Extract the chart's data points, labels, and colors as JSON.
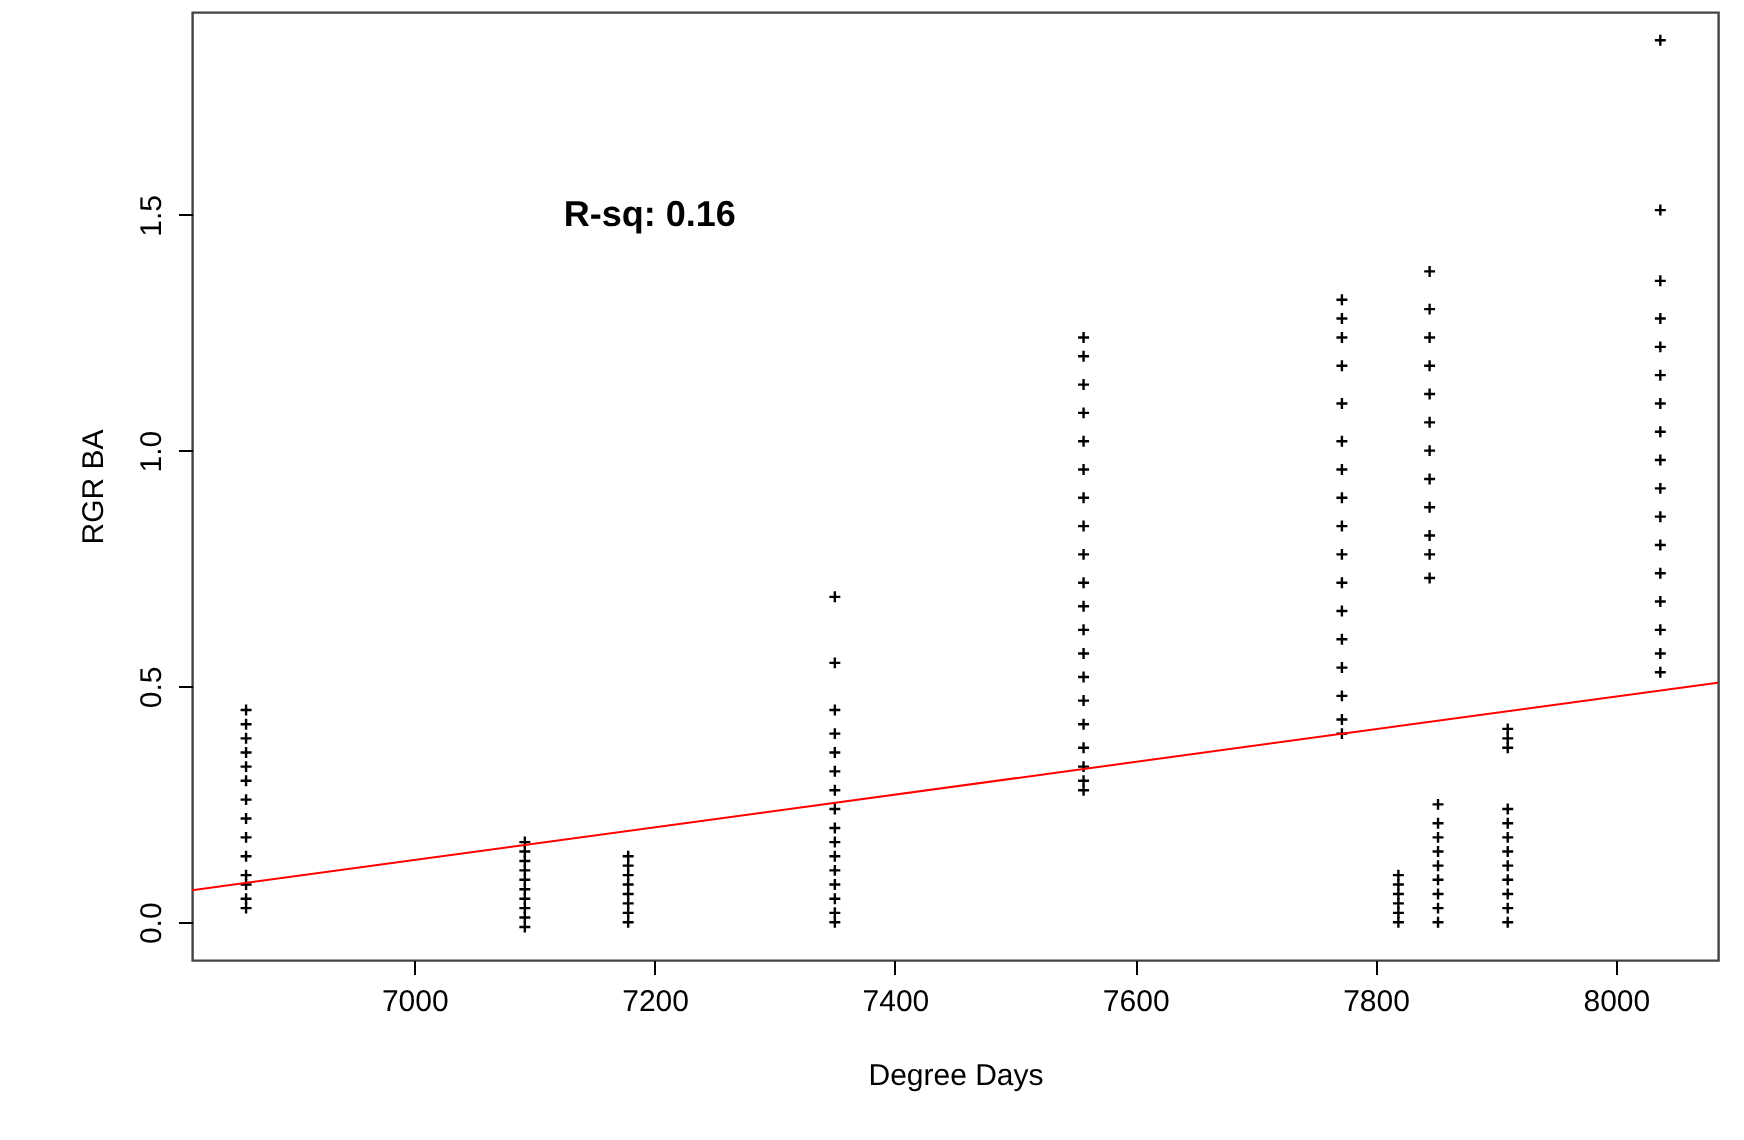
{
  "chart_data": {
    "type": "scatter",
    "xlabel": "Degree Days",
    "ylabel": "RGR BA",
    "annotations": [
      "R-sq: 0.16"
    ],
    "xlim": [
      6815,
      8085
    ],
    "xticks": [
      {
        "value": 7000,
        "label": "7000"
      },
      {
        "value": 7200,
        "label": "7200"
      },
      {
        "value": 7400,
        "label": "7400"
      },
      {
        "value": 7600,
        "label": "7600"
      },
      {
        "value": 7800,
        "label": "7800"
      },
      {
        "value": 8000,
        "label": "8000"
      }
    ],
    "ylim": [
      -0.08,
      1.93
    ],
    "yticks": [
      {
        "value": 0,
        "label": "0.0"
      },
      {
        "value": 0.5,
        "label": "0.5"
      },
      {
        "value": 1,
        "label": "1.0"
      },
      {
        "value": 1.5,
        "label": "1.5"
      }
    ],
    "grid": false,
    "series": [
      {
        "marker": "cross",
        "color": "#000000",
        "x": [
          6860,
          6860,
          6860,
          6860,
          6860,
          6860,
          6860,
          6860,
          6860,
          6860,
          6860,
          6860,
          6860,
          6860,
          7092,
          7092,
          7092,
          7092,
          7092,
          7092,
          7092,
          7092,
          7092,
          7092,
          7178,
          7178,
          7178,
          7178,
          7178,
          7178,
          7178,
          7178,
          7350,
          7350,
          7350,
          7350,
          7350,
          7350,
          7350,
          7350,
          7350,
          7350,
          7350,
          7350,
          7350,
          7350,
          7350,
          7350,
          7557,
          7557,
          7557,
          7557,
          7557,
          7557,
          7557,
          7557,
          7557,
          7557,
          7557,
          7557,
          7557,
          7557,
          7557,
          7557,
          7557,
          7557,
          7557,
          7557,
          7772,
          7772,
          7772,
          7772,
          7772,
          7772,
          7772,
          7772,
          7772,
          7772,
          7772,
          7772,
          7772,
          7772,
          7772,
          7772,
          7772,
          7819,
          7819,
          7819,
          7819,
          7819,
          7819,
          7845,
          7845,
          7845,
          7845,
          7845,
          7845,
          7845,
          7845,
          7845,
          7845,
          7845,
          7845,
          7852,
          7852,
          7852,
          7852,
          7852,
          7852,
          7852,
          7852,
          7852,
          7910,
          7910,
          7910,
          7910,
          7910,
          7910,
          7910,
          7910,
          7910,
          7910,
          7910,
          7910,
          8037,
          8037,
          8037,
          8037,
          8037,
          8037,
          8037,
          8037,
          8037,
          8037,
          8037,
          8037,
          8037,
          8037,
          8037,
          8037,
          8037
        ],
        "values": [
          0.03,
          0.05,
          0.08,
          0.1,
          0.14,
          0.18,
          0.22,
          0.26,
          0.3,
          0.33,
          0.36,
          0.39,
          0.42,
          0.45,
          -0.01,
          0.01,
          0.03,
          0.05,
          0.07,
          0.09,
          0.11,
          0.13,
          0.15,
          0.17,
          0.0,
          0.02,
          0.04,
          0.06,
          0.08,
          0.1,
          0.12,
          0.14,
          0.0,
          0.02,
          0.05,
          0.08,
          0.11,
          0.14,
          0.17,
          0.2,
          0.24,
          0.28,
          0.32,
          0.36,
          0.4,
          0.45,
          0.55,
          0.69,
          0.28,
          0.3,
          0.33,
          0.37,
          0.42,
          0.47,
          0.52,
          0.57,
          0.62,
          0.67,
          0.72,
          0.78,
          0.84,
          0.9,
          0.96,
          1.02,
          1.08,
          1.14,
          1.2,
          1.24,
          0.4,
          0.43,
          0.48,
          0.54,
          0.6,
          0.66,
          0.72,
          0.78,
          0.84,
          0.9,
          0.96,
          1.02,
          1.1,
          1.18,
          1.24,
          1.28,
          1.32,
          0.0,
          0.02,
          0.04,
          0.06,
          0.08,
          0.1,
          0.73,
          0.78,
          0.82,
          0.88,
          0.94,
          1.0,
          1.06,
          1.12,
          1.18,
          1.24,
          1.3,
          1.38,
          0.0,
          0.03,
          0.06,
          0.09,
          0.12,
          0.15,
          0.18,
          0.21,
          0.25,
          0.0,
          0.03,
          0.06,
          0.09,
          0.12,
          0.15,
          0.18,
          0.21,
          0.24,
          0.37,
          0.39,
          0.41,
          0.53,
          0.57,
          0.62,
          0.68,
          0.74,
          0.8,
          0.86,
          0.92,
          0.98,
          1.04,
          1.1,
          1.16,
          1.22,
          1.28,
          1.36,
          1.51,
          1.87
        ]
      },
      {
        "type": "line",
        "color": "#ff0000",
        "x": [
          6815,
          8085
        ],
        "values": [
          0.068,
          0.508
        ]
      }
    ]
  }
}
